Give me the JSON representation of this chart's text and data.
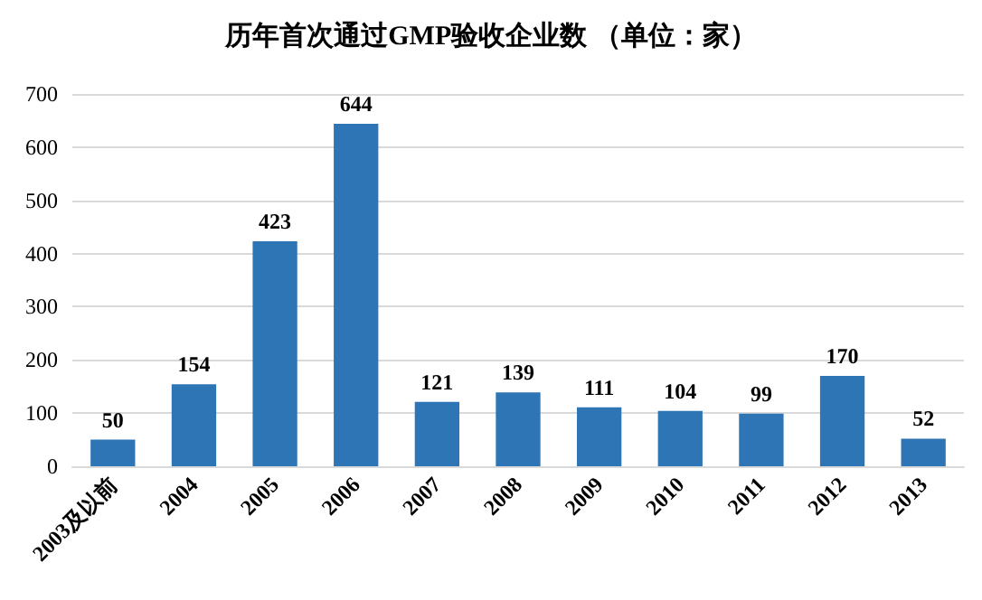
{
  "chart_data": {
    "type": "bar",
    "title": "历年首次通过GMP验收企业数 （单位：家）",
    "categories": [
      "2003及以前",
      "2004",
      "2005",
      "2006",
      "2007",
      "2008",
      "2009",
      "2010",
      "2011",
      "2012",
      "2013"
    ],
    "values": [
      50,
      154,
      423,
      644,
      121,
      139,
      111,
      104,
      99,
      170,
      52
    ],
    "color": "#2e75b6",
    "ylim": [
      0,
      700
    ],
    "yticks": [
      0,
      100,
      200,
      300,
      400,
      500,
      600,
      700
    ],
    "grid": "y",
    "data_labels": true
  }
}
